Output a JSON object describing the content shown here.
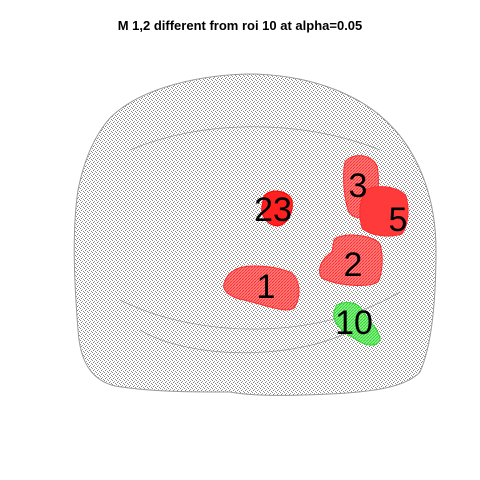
{
  "title": "M 1,2 different from roi 10 at alpha=0.05",
  "colors": {
    "cloud": "#8a8a8a",
    "significant": "#ff2a2a",
    "reference": "#2cd62c",
    "background": "#ffffff"
  },
  "rois": [
    {
      "id": "roi-1",
      "label": "1",
      "status": "significant"
    },
    {
      "id": "roi-2",
      "label": "2",
      "status": "significant"
    },
    {
      "id": "roi-3",
      "label": "3",
      "status": "significant"
    },
    {
      "id": "roi-5",
      "label": "5",
      "status": "significant"
    },
    {
      "id": "roi-10",
      "label": "10",
      "status": "reference"
    },
    {
      "id": "roi-23",
      "label": "23",
      "status": "significant"
    }
  ]
}
